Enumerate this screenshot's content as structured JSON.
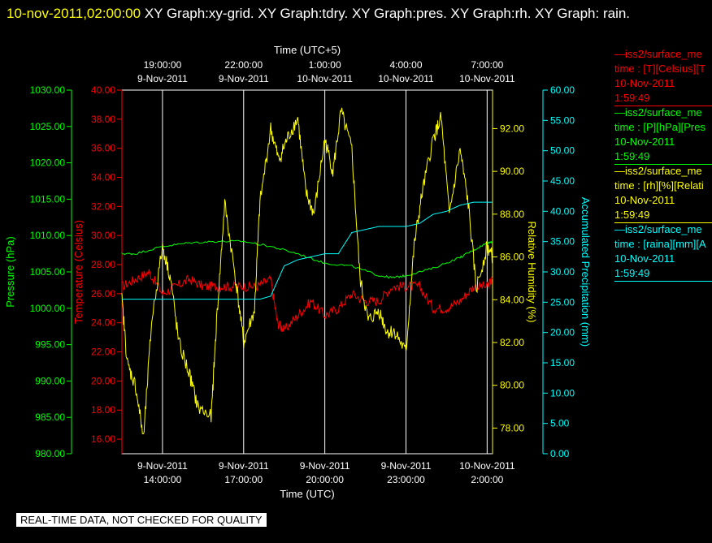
{
  "header": {
    "timestamp": "10-nov-2011,02:00:00",
    "title": "XY Graph:xy-grid.  XY Graph:tdry.  XY Graph:pres.  XY Graph:rh.  XY Graph: rain."
  },
  "quality_banner": "REAL-TIME DATA, NOT CHECKED FOR QUALITY",
  "legend": [
    {
      "id": "tdry",
      "color": "#ff0000",
      "name": "—iss2/surface_me",
      "line2": "time : [T][Celsius][T",
      "date": "10-Nov-2011",
      "time": "1:59:49"
    },
    {
      "id": "pres",
      "color": "#00ff00",
      "name": "—iss2/surface_me",
      "line2": "time : [P][hPa][Pres",
      "date": "10-Nov-2011",
      "time": "1:59:49"
    },
    {
      "id": "rh",
      "color": "#ffff00",
      "name": "—iss2/surface_me",
      "line2": "time : [rh][%][Relati",
      "date": "10-Nov-2011",
      "time": "1:59:49"
    },
    {
      "id": "rain",
      "color": "#00ffff",
      "name": "—iss2/surface_me",
      "line2": "time : [raina][mm][A",
      "date": "10-Nov-2011",
      "time": "1:59:49"
    }
  ],
  "chart_data": {
    "type": "line",
    "grid": true,
    "x_axis_bottom": {
      "title": "Time (UTC)",
      "range_hours": [
        12.5,
        26.2
      ],
      "ticks": [
        {
          "hour": 14,
          "date": "9-Nov-2011",
          "time": "14:00:00"
        },
        {
          "hour": 17,
          "date": "9-Nov-2011",
          "time": "17:00:00"
        },
        {
          "hour": 20,
          "date": "9-Nov-2011",
          "time": "20:00:00"
        },
        {
          "hour": 23,
          "date": "9-Nov-2011",
          "time": "23:00:00"
        },
        {
          "hour": 26,
          "date": "10-Nov-2011",
          "time": "2:00:00"
        }
      ]
    },
    "x_axis_top": {
      "title": "Time (UTC+5)",
      "ticks": [
        {
          "hour": 14,
          "time": "19:00:00",
          "date": "9-Nov-2011"
        },
        {
          "hour": 17,
          "time": "22:00:00",
          "date": "9-Nov-2011"
        },
        {
          "hour": 20,
          "time": "1:00:00",
          "date": "10-Nov-2011"
        },
        {
          "hour": 23,
          "time": "4:00:00",
          "date": "10-Nov-2011"
        },
        {
          "hour": 26,
          "time": "7:00:00",
          "date": "10-Nov-2011"
        }
      ]
    },
    "y_axes": [
      {
        "id": "pres",
        "title": "Pressure (hPa)",
        "color": "#00ff00",
        "range": [
          980,
          1030
        ],
        "ticks": [
          "980.00",
          "985.00",
          "990.00",
          "995.00",
          "1000.00",
          "1005.00",
          "1010.00",
          "1015.00",
          "1020.00",
          "1025.00",
          "1030.00"
        ]
      },
      {
        "id": "tdry",
        "title": "Temperature (Celsius)",
        "color": "#ff0000",
        "range": [
          15,
          40
        ],
        "ticks": [
          "16.00",
          "18.00",
          "20.00",
          "22.00",
          "24.00",
          "26.00",
          "28.00",
          "30.00",
          "32.00",
          "34.00",
          "36.00",
          "38.00",
          "40.00"
        ]
      },
      {
        "id": "rh",
        "title": "Relative Humidity (%)",
        "color": "#ffff00",
        "range": [
          76.8,
          93.8
        ],
        "ticks": [
          "78.00",
          "80.00",
          "82.00",
          "84.00",
          "86.00",
          "88.00",
          "90.00",
          "92.00"
        ]
      },
      {
        "id": "rain",
        "title": "Accumulated Precipitation (mm)",
        "color": "#00ffff",
        "range": [
          0,
          60
        ],
        "ticks": [
          "0.00",
          "5.00",
          "10.00",
          "15.00",
          "20.00",
          "25.00",
          "30.00",
          "35.00",
          "40.00",
          "45.00",
          "50.00",
          "55.00",
          "60.00"
        ]
      }
    ],
    "series": [
      {
        "id": "tdry",
        "axis": "tdry",
        "color": "#ff0000",
        "x": [
          12.5,
          13.0,
          13.5,
          14.0,
          14.5,
          15.0,
          15.5,
          16.0,
          16.5,
          17.0,
          17.5,
          18.0,
          18.25,
          18.5,
          19.0,
          19.5,
          20.0,
          20.5,
          21.0,
          21.5,
          22.0,
          22.5,
          23.0,
          23.5,
          24.0,
          24.5,
          25.0,
          25.5,
          26.0,
          26.2
        ],
        "y": [
          26.5,
          27.0,
          27.5,
          26.0,
          26.5,
          27.0,
          26.5,
          26.5,
          26.5,
          26.5,
          26.5,
          27.0,
          24.0,
          23.5,
          24.5,
          25.5,
          24.5,
          25.0,
          26.0,
          25.5,
          25.5,
          26.5,
          26.5,
          26.5,
          25.0,
          25.0,
          25.5,
          26.5,
          26.5,
          27.0
        ]
      },
      {
        "id": "pres",
        "axis": "pres",
        "color": "#00ff00",
        "x": [
          12.5,
          13.0,
          14.0,
          15.0,
          16.0,
          17.0,
          18.0,
          19.0,
          20.0,
          21.0,
          22.0,
          22.5,
          23.0,
          24.0,
          25.0,
          25.5,
          26.0,
          26.2
        ],
        "y": [
          1007.5,
          1007.5,
          1008.5,
          1009.0,
          1009.2,
          1009.2,
          1008.5,
          1007.5,
          1006.2,
          1005.8,
          1004.5,
          1004.2,
          1004.5,
          1005.5,
          1007.0,
          1008.0,
          1009.0,
          1009.2
        ]
      },
      {
        "id": "rh",
        "axis": "rh",
        "color": "#ffff00",
        "x": [
          12.5,
          12.7,
          13.0,
          13.3,
          13.6,
          14.0,
          14.3,
          14.6,
          15.0,
          15.3,
          15.8,
          16.0,
          16.3,
          16.7,
          17.0,
          17.4,
          17.6,
          18.0,
          18.3,
          18.6,
          19.0,
          19.3,
          19.6,
          20.0,
          20.3,
          20.6,
          21.0,
          21.3,
          21.6,
          22.0,
          22.3,
          22.6,
          23.0,
          23.3,
          23.6,
          24.0,
          24.3,
          24.6,
          25.0,
          25.3,
          25.6,
          26.0,
          26.2
        ],
        "y": [
          84.0,
          81.0,
          80.0,
          77.5,
          83.0,
          86.5,
          85.0,
          82.0,
          80.5,
          79.0,
          78.5,
          83.0,
          88.5,
          85.0,
          82.0,
          83.5,
          88.5,
          92.0,
          90.5,
          91.5,
          92.5,
          89.0,
          88.0,
          91.5,
          90.0,
          92.8,
          91.0,
          85.0,
          83.0,
          83.5,
          82.5,
          82.5,
          81.5,
          86.5,
          89.0,
          91.5,
          92.5,
          88.0,
          91.0,
          88.5,
          84.5,
          86.5,
          86.0
        ]
      },
      {
        "id": "rain",
        "axis": "rain",
        "color": "#00ffff",
        "x": [
          12.5,
          13.0,
          14.0,
          15.0,
          16.0,
          17.0,
          17.6,
          18.0,
          18.5,
          19.0,
          19.5,
          20.0,
          20.5,
          21.0,
          21.5,
          22.0,
          22.5,
          23.0,
          23.5,
          24.0,
          24.5,
          25.0,
          25.5,
          26.0,
          26.2
        ],
        "y": [
          25.5,
          25.5,
          25.5,
          25.5,
          25.5,
          25.5,
          25.5,
          26.0,
          31.0,
          32.0,
          32.5,
          33.0,
          33.0,
          36.5,
          37.0,
          37.5,
          37.5,
          37.5,
          38.0,
          39.5,
          40.0,
          41.0,
          41.5,
          41.5,
          41.5
        ]
      }
    ]
  }
}
